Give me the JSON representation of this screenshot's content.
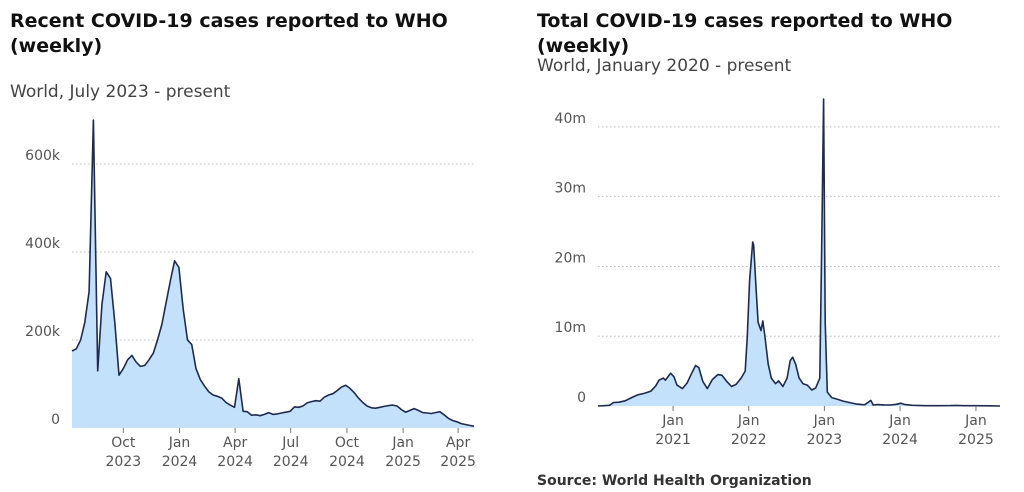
{
  "chart_data": [
    {
      "type": "area",
      "title": "Recent COVID-19 cases reported to WHO (weekly)",
      "subtitle": "World, July 2023 - present",
      "xlabel": "",
      "ylabel": "",
      "ylim": [
        0,
        700000
      ],
      "yticks": [
        0,
        200000,
        400000,
        600000
      ],
      "ytick_labels": [
        "0",
        "200k",
        "400k",
        "600k"
      ],
      "xticks": [
        {
          "x": "2023-10-01",
          "label": [
            "Oct",
            "2023"
          ]
        },
        {
          "x": "2024-01-01",
          "label": [
            "Jan",
            "2024"
          ]
        },
        {
          "x": "2024-04-01",
          "label": [
            "Apr",
            "2024"
          ]
        },
        {
          "x": "2024-07-01",
          "label": [
            "Jul",
            "2024"
          ]
        },
        {
          "x": "2024-10-01",
          "label": [
            "Oct",
            "2024"
          ]
        },
        {
          "x": "2025-01-01",
          "label": [
            "Jan",
            "2025"
          ]
        },
        {
          "x": "2025-04-01",
          "label": [
            "Apr",
            "2025"
          ]
        }
      ],
      "grid": "horizontal",
      "fill_color": "#c3e1fb",
      "line_color": "#1e2b4e",
      "series": [
        {
          "name": "",
          "points": [
            [
              "2023-07-09",
              175000
            ],
            [
              "2023-07-16",
              180000
            ],
            [
              "2023-07-23",
              200000
            ],
            [
              "2023-07-30",
              240000
            ],
            [
              "2023-08-06",
              310000
            ],
            [
              "2023-08-13",
              700000
            ],
            [
              "2023-08-20",
              130000
            ],
            [
              "2023-08-27",
              280000
            ],
            [
              "2023-09-03",
              355000
            ],
            [
              "2023-09-10",
              340000
            ],
            [
              "2023-09-17",
              240000
            ],
            [
              "2023-09-24",
              120000
            ],
            [
              "2023-10-01",
              135000
            ],
            [
              "2023-10-08",
              155000
            ],
            [
              "2023-10-15",
              165000
            ],
            [
              "2023-10-22",
              150000
            ],
            [
              "2023-10-29",
              140000
            ],
            [
              "2023-11-05",
              142000
            ],
            [
              "2023-11-12",
              155000
            ],
            [
              "2023-11-19",
              170000
            ],
            [
              "2023-11-26",
              200000
            ],
            [
              "2023-12-03",
              235000
            ],
            [
              "2023-12-10",
              285000
            ],
            [
              "2023-12-17",
              335000
            ],
            [
              "2023-12-24",
              380000
            ],
            [
              "2023-12-31",
              365000
            ],
            [
              "2024-01-07",
              270000
            ],
            [
              "2024-01-14",
              200000
            ],
            [
              "2024-01-21",
              190000
            ],
            [
              "2024-01-28",
              135000
            ],
            [
              "2024-02-04",
              110000
            ],
            [
              "2024-02-11",
              95000
            ],
            [
              "2024-02-18",
              82000
            ],
            [
              "2024-02-25",
              75000
            ],
            [
              "2024-03-03",
              72000
            ],
            [
              "2024-03-10",
              68000
            ],
            [
              "2024-03-17",
              58000
            ],
            [
              "2024-03-24",
              52000
            ],
            [
              "2024-03-31",
              47000
            ],
            [
              "2024-04-07",
              112000
            ],
            [
              "2024-04-14",
              38000
            ],
            [
              "2024-04-21",
              37000
            ],
            [
              "2024-04-28",
              29000
            ],
            [
              "2024-05-05",
              30000
            ],
            [
              "2024-05-12",
              28000
            ],
            [
              "2024-05-19",
              31000
            ],
            [
              "2024-05-26",
              35000
            ],
            [
              "2024-06-02",
              31000
            ],
            [
              "2024-06-09",
              32000
            ],
            [
              "2024-06-16",
              34000
            ],
            [
              "2024-06-23",
              36000
            ],
            [
              "2024-06-30",
              38000
            ],
            [
              "2024-07-07",
              48000
            ],
            [
              "2024-07-14",
              47000
            ],
            [
              "2024-07-21",
              50000
            ],
            [
              "2024-07-28",
              57000
            ],
            [
              "2024-08-04",
              60000
            ],
            [
              "2024-08-11",
              62000
            ],
            [
              "2024-08-18",
              61000
            ],
            [
              "2024-08-25",
              70000
            ],
            [
              "2024-09-01",
              75000
            ],
            [
              "2024-09-08",
              78000
            ],
            [
              "2024-09-15",
              85000
            ],
            [
              "2024-09-22",
              93000
            ],
            [
              "2024-09-29",
              97000
            ],
            [
              "2024-10-06",
              90000
            ],
            [
              "2024-10-13",
              80000
            ],
            [
              "2024-10-20",
              68000
            ],
            [
              "2024-10-27",
              58000
            ],
            [
              "2024-11-03",
              50000
            ],
            [
              "2024-11-10",
              46000
            ],
            [
              "2024-11-17",
              45000
            ],
            [
              "2024-11-24",
              47000
            ],
            [
              "2024-12-01",
              49000
            ],
            [
              "2024-12-08",
              51000
            ],
            [
              "2024-12-15",
              52000
            ],
            [
              "2024-12-22",
              50000
            ],
            [
              "2024-12-29",
              42000
            ],
            [
              "2025-01-05",
              36000
            ],
            [
              "2025-01-12",
              40000
            ],
            [
              "2025-01-19",
              44000
            ],
            [
              "2025-01-26",
              40000
            ],
            [
              "2025-02-02",
              35000
            ],
            [
              "2025-02-09",
              34000
            ],
            [
              "2025-02-16",
              33000
            ],
            [
              "2025-02-23",
              35000
            ],
            [
              "2025-03-02",
              37000
            ],
            [
              "2025-03-09",
              30000
            ],
            [
              "2025-03-16",
              22000
            ],
            [
              "2025-03-23",
              17000
            ],
            [
              "2025-03-30",
              14000
            ],
            [
              "2025-04-06",
              10000
            ],
            [
              "2025-04-13",
              8000
            ],
            [
              "2025-04-20",
              6000
            ],
            [
              "2025-04-27",
              4000
            ]
          ]
        }
      ]
    },
    {
      "type": "area",
      "title": "Total COVID-19 cases reported to WHO (weekly)",
      "subtitle": "World, January 2020 - present",
      "xlabel": "",
      "ylabel": "",
      "ylim": [
        0,
        45000000
      ],
      "yticks": [
        0,
        10000000,
        20000000,
        30000000,
        40000000
      ],
      "ytick_labels": [
        "0",
        "10m",
        "20m",
        "30m",
        "40m"
      ],
      "xticks": [
        {
          "x": "2021-01-01",
          "label": [
            "Jan",
            "2021"
          ]
        },
        {
          "x": "2022-01-01",
          "label": [
            "Jan",
            "2022"
          ]
        },
        {
          "x": "2023-01-01",
          "label": [
            "Jan",
            "2023"
          ]
        },
        {
          "x": "2024-01-01",
          "label": [
            "Jan",
            "2024"
          ]
        },
        {
          "x": "2025-01-01",
          "label": [
            "Jan",
            "2025"
          ]
        }
      ],
      "grid": "horizontal",
      "fill_color": "#c3e1fb",
      "line_color": "#1e2b4e",
      "series": [
        {
          "name": "",
          "points": [
            [
              "2020-01-05",
              0
            ],
            [
              "2020-02-01",
              50000
            ],
            [
              "2020-03-01",
              100000
            ],
            [
              "2020-03-20",
              500000
            ],
            [
              "2020-04-15",
              550000
            ],
            [
              "2020-05-15",
              750000
            ],
            [
              "2020-06-15",
              1200000
            ],
            [
              "2020-07-15",
              1600000
            ],
            [
              "2020-08-15",
              1800000
            ],
            [
              "2020-09-15",
              2100000
            ],
            [
              "2020-10-10",
              2900000
            ],
            [
              "2020-10-25",
              3700000
            ],
            [
              "2020-11-15",
              4000000
            ],
            [
              "2020-11-25",
              3700000
            ],
            [
              "2020-12-10",
              4300000
            ],
            [
              "2020-12-20",
              4700000
            ],
            [
              "2021-01-05",
              4200000
            ],
            [
              "2021-01-20",
              3000000
            ],
            [
              "2021-02-15",
              2500000
            ],
            [
              "2021-03-10",
              3300000
            ],
            [
              "2021-04-01",
              4700000
            ],
            [
              "2021-04-20",
              5800000
            ],
            [
              "2021-05-05",
              5500000
            ],
            [
              "2021-05-25",
              3500000
            ],
            [
              "2021-06-15",
              2500000
            ],
            [
              "2021-07-10",
              3800000
            ],
            [
              "2021-08-05",
              4500000
            ],
            [
              "2021-08-25",
              4400000
            ],
            [
              "2021-09-15",
              3600000
            ],
            [
              "2021-10-10",
              2800000
            ],
            [
              "2021-11-01",
              3100000
            ],
            [
              "2021-11-25",
              4000000
            ],
            [
              "2021-12-15",
              5000000
            ],
            [
              "2021-12-25",
              10000000
            ],
            [
              "2022-01-05",
              18000000
            ],
            [
              "2022-01-20",
              23500000
            ],
            [
              "2022-01-25",
              23000000
            ],
            [
              "2022-02-05",
              17000000
            ],
            [
              "2022-02-15",
              12000000
            ],
            [
              "2022-03-01",
              10800000
            ],
            [
              "2022-03-10",
              12200000
            ],
            [
              "2022-03-20",
              10000000
            ],
            [
              "2022-04-05",
              6000000
            ],
            [
              "2022-04-20",
              4000000
            ],
            [
              "2022-05-10",
              3200000
            ],
            [
              "2022-05-25",
              3600000
            ],
            [
              "2022-06-15",
              2800000
            ],
            [
              "2022-07-05",
              4000000
            ],
            [
              "2022-07-20",
              6500000
            ],
            [
              "2022-08-01",
              7000000
            ],
            [
              "2022-08-15",
              6000000
            ],
            [
              "2022-09-01",
              4000000
            ],
            [
              "2022-09-20",
              3200000
            ],
            [
              "2022-10-10",
              3000000
            ],
            [
              "2022-11-01",
              2300000
            ],
            [
              "2022-11-20",
              2600000
            ],
            [
              "2022-12-10",
              4000000
            ],
            [
              "2022-12-20",
              25000000
            ],
            [
              "2022-12-28",
              44000000
            ],
            [
              "2023-01-05",
              12000000
            ],
            [
              "2023-01-15",
              2000000
            ],
            [
              "2023-02-05",
              1200000
            ],
            [
              "2023-03-01",
              1000000
            ],
            [
              "2023-04-01",
              700000
            ],
            [
              "2023-05-01",
              500000
            ],
            [
              "2023-06-01",
              300000
            ],
            [
              "2023-07-01",
              200000
            ],
            [
              "2023-07-15",
              180000
            ],
            [
              "2023-08-13",
              800000
            ],
            [
              "2023-08-25",
              150000
            ],
            [
              "2023-09-15",
              200000
            ],
            [
              "2023-10-15",
              160000
            ],
            [
              "2023-11-15",
              150000
            ],
            [
              "2023-12-15",
              250000
            ],
            [
              "2024-01-05",
              400000
            ],
            [
              "2024-01-25",
              200000
            ],
            [
              "2024-03-01",
              100000
            ],
            [
              "2024-05-01",
              50000
            ],
            [
              "2024-07-01",
              40000
            ],
            [
              "2024-09-01",
              60000
            ],
            [
              "2024-10-01",
              90000
            ],
            [
              "2024-11-01",
              50000
            ],
            [
              "2025-01-01",
              40000
            ],
            [
              "2025-03-01",
              30000
            ],
            [
              "2025-04-27",
              5000
            ]
          ]
        }
      ]
    }
  ],
  "source_note": "Source: World Health Organization"
}
